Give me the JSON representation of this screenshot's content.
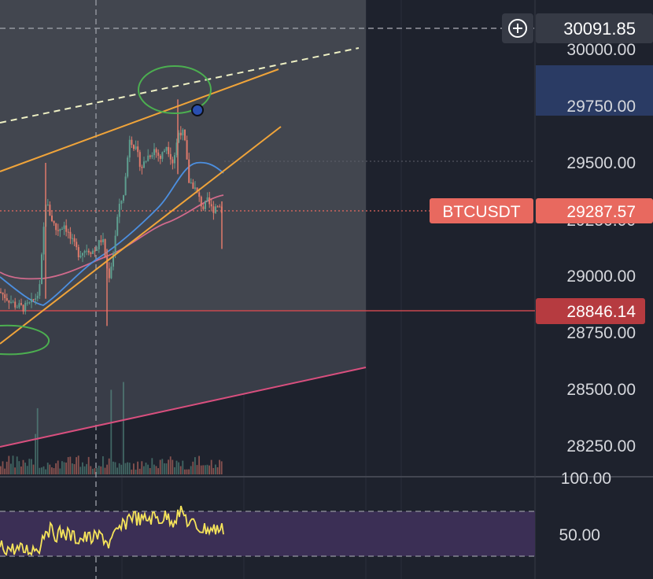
{
  "symbol": "BTCUSDT",
  "colors": {
    "background": "#1e222d",
    "zone": "#3d414c",
    "zone_upper": "#464a55",
    "grid": "#2b2f3a",
    "axis_text": "#d6d8dd",
    "trend_orange": "#f0a43a",
    "dashed_white": "#eef0c4",
    "ma_blue": "#4c8fe0",
    "ma_pink": "#d06a8c",
    "support_pink": "#d94f7e",
    "price_red_line": "#c8484f",
    "tag_salmon": "#e8695f",
    "tag_dark_red": "#b63b40",
    "crosshair_tag": "#363a45",
    "highlight_band": "#2a3b64",
    "circle_green": "#4caf50",
    "marker_blue": "#2a4fb0",
    "candle_up": "#5e9e8f",
    "candle_down": "#e07a6b",
    "rsi_line": "#f5e35a",
    "rsi_band": "#3b2f55"
  },
  "price_axis": {
    "labels": [
      "30000.00",
      "29750.00",
      "29500.00",
      "29250.00",
      "29000.00",
      "28750.00",
      "28500.00",
      "28250.00"
    ]
  },
  "crosshair": {
    "price": "30091.85",
    "icon": "plus-circle-icon"
  },
  "last_price": {
    "label": "BTCUSDT",
    "price": "29287.57"
  },
  "level_price": "28846.14",
  "rsi_axis": {
    "labels": [
      "100.00",
      "50.00"
    ]
  },
  "chart_data": {
    "type": "candlestick",
    "y_range_visible": [
      28140,
      30140
    ],
    "horizontal_levels": [
      30091.85,
      28846.14
    ],
    "series": [
      {
        "name": "BTCUSDT",
        "last": 29287.57
      }
    ],
    "close_path": [
      [
        0,
        28930
      ],
      [
        10,
        28900
      ],
      [
        20,
        28870
      ],
      [
        30,
        28860
      ],
      [
        40,
        28880
      ],
      [
        50,
        28930
      ],
      [
        58,
        29330
      ],
      [
        65,
        29260
      ],
      [
        72,
        29200
      ],
      [
        82,
        29230
      ],
      [
        90,
        29160
      ],
      [
        100,
        29100
      ],
      [
        110,
        29120
      ],
      [
        120,
        29110
      ],
      [
        130,
        29170
      ],
      [
        138,
        28990
      ],
      [
        143,
        29080
      ],
      [
        150,
        29280
      ],
      [
        158,
        29380
      ],
      [
        165,
        29620
      ],
      [
        172,
        29560
      ],
      [
        180,
        29480
      ],
      [
        188,
        29530
      ],
      [
        196,
        29560
      ],
      [
        204,
        29520
      ],
      [
        212,
        29580
      ],
      [
        220,
        29500
      ],
      [
        228,
        29650
      ],
      [
        234,
        29620
      ],
      [
        240,
        29420
      ],
      [
        246,
        29400
      ],
      [
        252,
        29350
      ],
      [
        258,
        29300
      ],
      [
        264,
        29330
      ],
      [
        270,
        29290
      ],
      [
        276,
        29320
      ],
      [
        284,
        29287.57
      ]
    ],
    "rsi": {
      "levels": [
        70,
        30
      ],
      "axis_labels": [
        100,
        50
      ]
    }
  }
}
